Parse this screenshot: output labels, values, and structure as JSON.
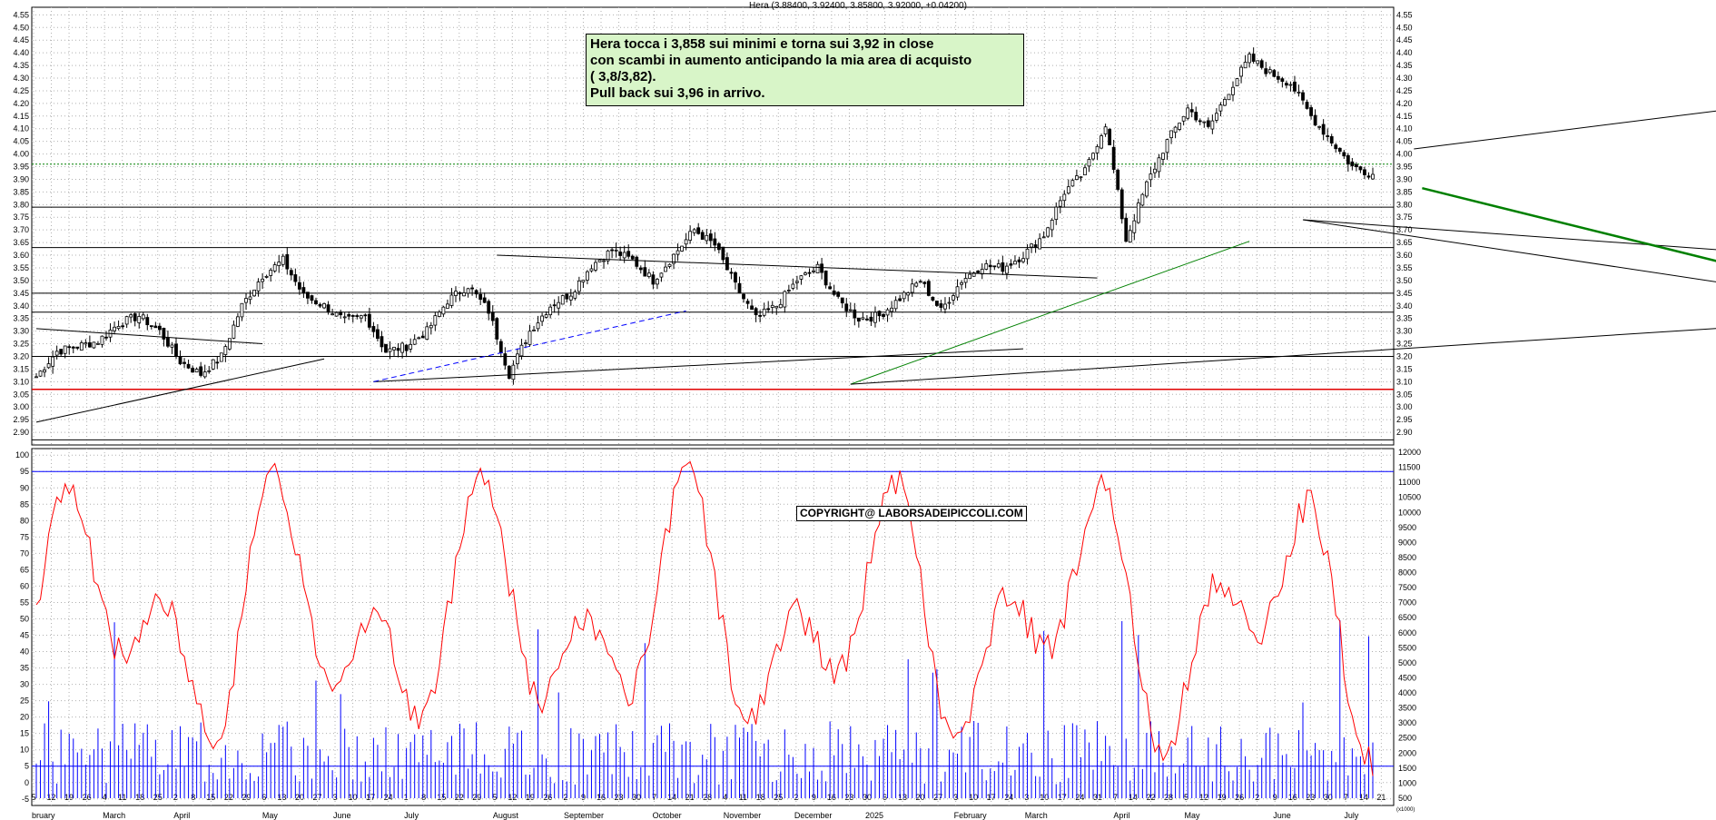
{
  "header": "Hera (3.88400, 3.92400, 3.85800, 3.92000, +0.04200)",
  "annotation_lines": [
    "Hera tocca i 3,858 sui minimi e torna sui 3,92 in close",
    "con scambi in aumento  anticipando la mia area di acquisto",
    "( 3,8/3,82).",
    "Pull back sui 3,96 in arrivo."
  ],
  "copyright": "COPYRIGHT@ LABORSADEIPICCOLI.COM",
  "colors": {
    "candle": "#000000",
    "support_levels": "#000000",
    "red_level": "#e00000",
    "green_trend": "#008000",
    "blue_dash": "#0000ff",
    "oscillator": "#ff0000",
    "volume": "#0000ff",
    "dotted_level": "#008000",
    "annotation_bg": "#d8f5c8"
  },
  "chart_data": [
    {
      "type": "candlestick",
      "title": "Hera",
      "yticks": [
        "2.90",
        "2.95",
        "3.00",
        "3.05",
        "3.10",
        "3.15",
        "3.20",
        "3.25",
        "3.30",
        "3.35",
        "3.40",
        "3.45",
        "3.50",
        "3.55",
        "3.60",
        "3.65",
        "3.70",
        "3.75",
        "3.80",
        "3.85",
        "3.90",
        "3.95",
        "4.00",
        "4.05",
        "4.10",
        "4.15",
        "4.20",
        "4.25",
        "4.30",
        "4.35",
        "4.40",
        "4.45",
        "4.50",
        "4.55"
      ],
      "ylim": [
        2.85,
        4.58
      ],
      "horizontal_levels": [
        3.79,
        3.63,
        3.45,
        3.375,
        3.2,
        2.87
      ],
      "red_level": 3.07,
      "dotted_level": 3.96,
      "close_series_weekly": [
        3.12,
        3.22,
        3.24,
        3.26,
        3.33,
        3.36,
        3.3,
        3.18,
        3.13,
        3.2,
        3.4,
        3.52,
        3.58,
        3.44,
        3.4,
        3.34,
        3.36,
        3.22,
        3.24,
        3.3,
        3.42,
        3.48,
        3.38,
        3.13,
        3.3,
        3.4,
        3.45,
        3.56,
        3.62,
        3.58,
        3.5,
        3.6,
        3.7,
        3.64,
        3.48,
        3.35,
        3.4,
        3.5,
        3.55,
        3.42,
        3.35,
        3.36,
        3.43,
        3.5,
        3.38,
        3.5,
        3.56,
        3.55,
        3.6,
        3.68,
        3.85,
        3.93,
        4.12,
        3.66,
        3.88,
        4.05,
        4.18,
        4.1,
        4.25,
        4.38,
        4.32,
        4.28,
        4.15,
        4.05,
        3.95,
        3.92
      ],
      "xticks": [
        "5",
        "12",
        "19",
        "26",
        "4",
        "11",
        "18",
        "25",
        "2",
        "8",
        "15",
        "22",
        "29",
        "6",
        "13",
        "20",
        "27",
        "3",
        "10",
        "17",
        "24",
        "1",
        "8",
        "15",
        "22",
        "29",
        "5",
        "12",
        "19",
        "26",
        "2",
        "9",
        "16",
        "23",
        "30",
        "7",
        "14",
        "21",
        "28",
        "4",
        "11",
        "18",
        "25",
        "2",
        "9",
        "16",
        "23",
        "30",
        "6",
        "13",
        "20",
        "27",
        "3",
        "10",
        "17",
        "24",
        "3",
        "10",
        "17",
        "24",
        "31",
        "7",
        "14",
        "22",
        "28",
        "5",
        "12",
        "19",
        "26",
        "2",
        "9",
        "16",
        "23",
        "30",
        "7",
        "14",
        "21"
      ],
      "months": [
        "bruary",
        "March",
        "April",
        "May",
        "June",
        "July",
        "August",
        "September",
        "October",
        "November",
        "December",
        "2025",
        "February",
        "March",
        "April",
        "May",
        "June",
        "July"
      ]
    },
    {
      "type": "line",
      "title": "",
      "yticks": [
        "-5",
        "0",
        "5",
        "10",
        "15",
        "20",
        "25",
        "30",
        "35",
        "40",
        "45",
        "50",
        "55",
        "60",
        "65",
        "70",
        "75",
        "80",
        "85",
        "90",
        "95",
        "100"
      ],
      "ylim": [
        -7,
        102
      ],
      "levels": [
        95,
        5
      ],
      "volume_ticks": [
        "500",
        "1000",
        "1500",
        "2000",
        "2500",
        "3000",
        "3500",
        "4000",
        "4500",
        "5000",
        "5500",
        "6000",
        "6500",
        "7000",
        "7500",
        "8000",
        "8500",
        "9000",
        "9500",
        "10000",
        "10500",
        "11000",
        "11500",
        "12000"
      ],
      "volume_unit": "(x1000)"
    }
  ]
}
